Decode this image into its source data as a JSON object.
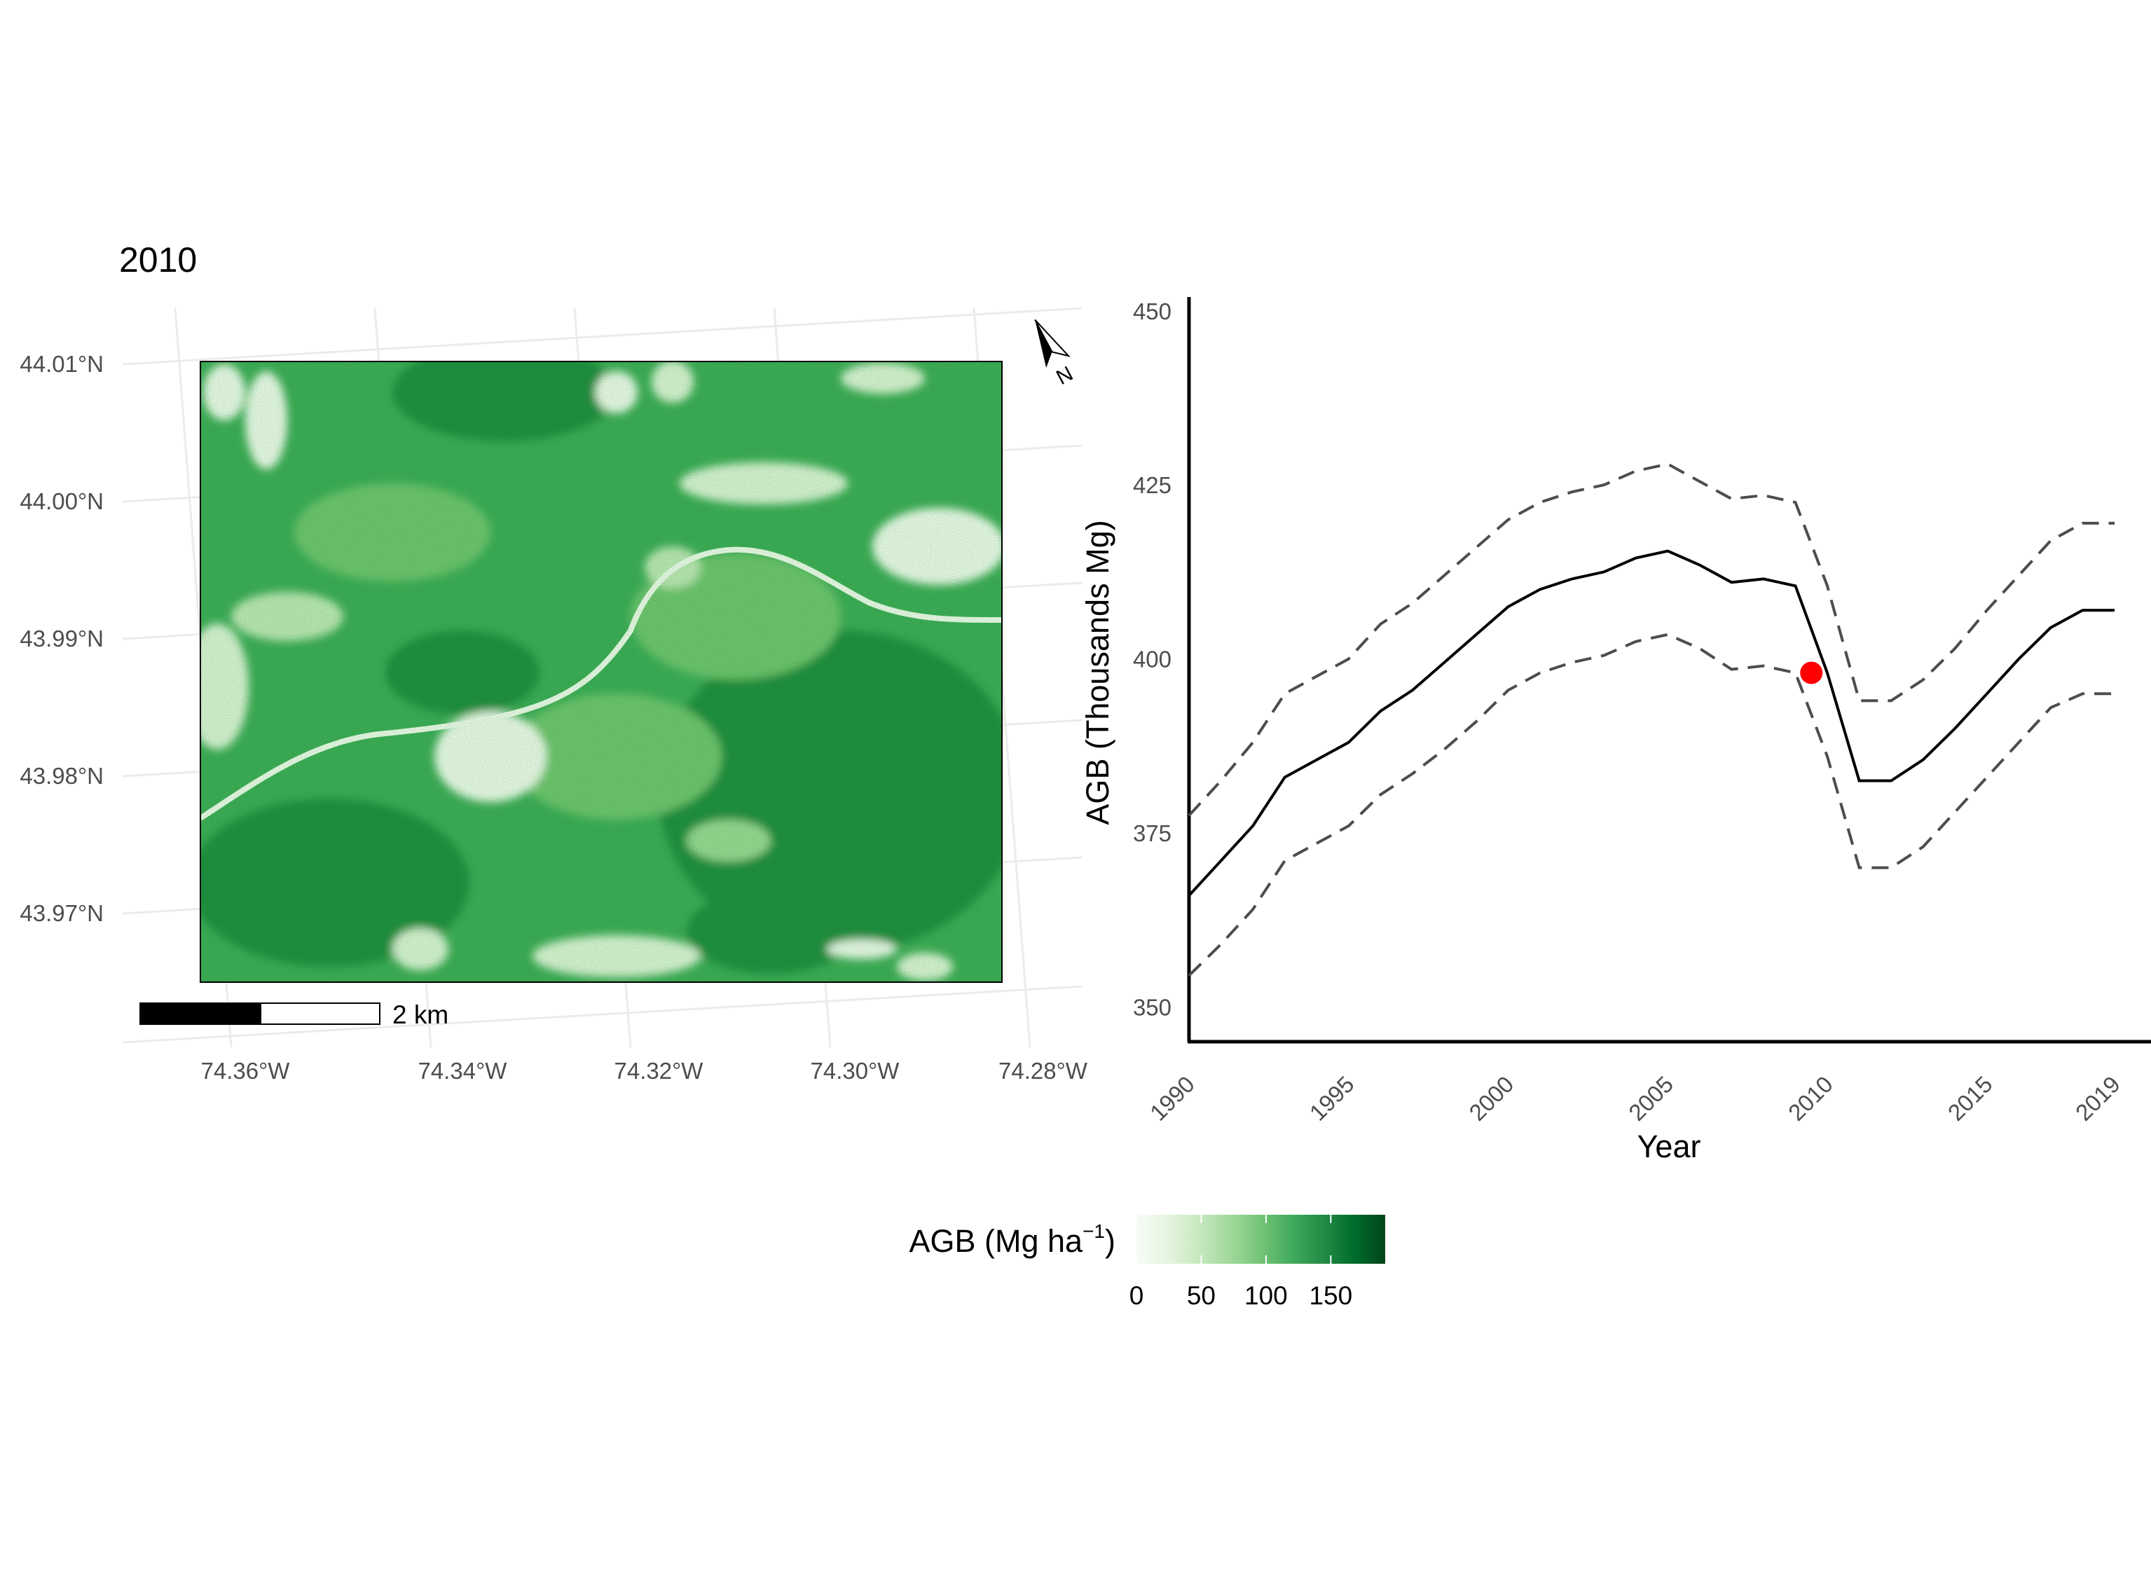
{
  "map_panel": {
    "title": "2010",
    "lat_labels": [
      "44.01°N",
      "44.00°N",
      "43.99°N",
      "43.98°N",
      "43.97°N"
    ],
    "lon_labels": [
      "74.36°W",
      "74.34°W",
      "74.32°W",
      "74.30°W",
      "74.28°W"
    ],
    "scalebar_label": "2 km",
    "north_arrow_label": "N"
  },
  "legend": {
    "title_main": "AGB (Mg ha",
    "title_sup": "−1",
    "title_close": ")",
    "ticks": [
      "0",
      "50",
      "100",
      "150"
    ],
    "colors": [
      "#f7fcf5",
      "#e5f5e0",
      "#c7e9c0",
      "#a1d99b",
      "#74c476",
      "#41ab5d",
      "#238b45",
      "#006d2c",
      "#00441b"
    ]
  },
  "colors": {
    "main_line": "#000000",
    "ci_line": "#4d4d4d",
    "highlight_point": "#ff0000"
  },
  "chart_data": {
    "type": "line",
    "xlabel": "Year",
    "ylabel": "AGB (Thousands Mg)",
    "xlim": [
      1990,
      2019
    ],
    "ylim": [
      345,
      452
    ],
    "x_ticks": [
      1990,
      1995,
      2000,
      2005,
      2010,
      2015,
      2019
    ],
    "y_ticks": [
      350,
      375,
      400,
      425,
      450
    ],
    "x": [
      1990,
      1991,
      1992,
      1993,
      1994,
      1995,
      1996,
      1997,
      1998,
      1999,
      2000,
      2001,
      2002,
      2003,
      2004,
      2005,
      2006,
      2007,
      2008,
      2009,
      2010,
      2011,
      2012,
      2013,
      2014,
      2015,
      2016,
      2017,
      2018,
      2019
    ],
    "series": [
      {
        "role": "estimate",
        "style": "solid",
        "values": [
          366.0,
          371.0,
          376.0,
          383.0,
          385.5,
          388.0,
          392.5,
          395.5,
          399.5,
          403.5,
          407.5,
          410.0,
          411.5,
          412.5,
          414.5,
          415.5,
          413.5,
          411.0,
          411.5,
          410.5,
          398.0,
          382.5,
          382.5,
          385.5,
          390.0,
          395.0,
          400.0,
          404.5,
          407.0,
          407.0
        ]
      },
      {
        "role": "upper bound",
        "style": "dashed",
        "values": [
          377.5,
          382.5,
          388.0,
          395.0,
          397.5,
          400.0,
          405.0,
          408.0,
          412.0,
          416.0,
          420.0,
          422.5,
          424.0,
          425.0,
          427.0,
          428.0,
          425.5,
          423.0,
          423.5,
          422.5,
          410.5,
          394.0,
          394.0,
          397.0,
          401.5,
          407.0,
          412.0,
          417.0,
          419.5,
          419.5
        ]
      },
      {
        "role": "lower bound",
        "style": "dashed",
        "values": [
          354.5,
          359.0,
          364.0,
          371.0,
          373.5,
          376.0,
          380.5,
          383.5,
          387.0,
          391.0,
          395.5,
          398.0,
          399.5,
          400.5,
          402.5,
          403.5,
          401.5,
          398.5,
          399.0,
          398.0,
          386.0,
          370.0,
          370.0,
          373.0,
          378.0,
          383.0,
          388.0,
          393.0,
          395.0,
          395.0
        ]
      }
    ],
    "highlight": {
      "x": 2009.5,
      "y": 398.0
    }
  }
}
